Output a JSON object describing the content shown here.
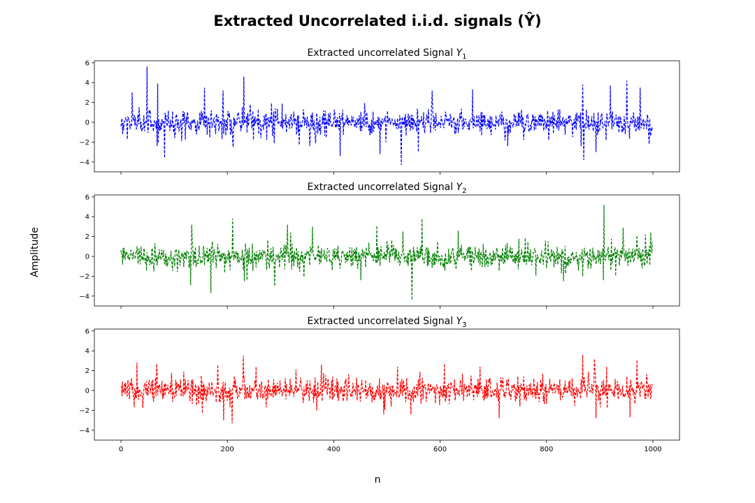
{
  "figure": {
    "suptitle": "Extracted Uncorrelated i.i.d. signals (Ŷ)",
    "xlabel": "n",
    "ylabel": "Amplitude"
  },
  "chart_data": [
    {
      "type": "line",
      "title": "Extracted uncorrelated Signal Y",
      "title_subscript": "1",
      "color": "#0000ff",
      "line_style": "dashed",
      "xlim": [
        -50,
        1050
      ],
      "ylim": [
        -5,
        6.2
      ],
      "xticks": [
        0,
        200,
        400,
        600,
        800,
        1000
      ],
      "yticks": [
        -4,
        -2,
        0,
        2,
        4,
        6
      ],
      "n_points": 1000,
      "peaks": [
        [
          21,
          3.0
        ],
        [
          49,
          5.6
        ],
        [
          69,
          3.9
        ],
        [
          82,
          -3.6
        ],
        [
          157,
          3.5
        ],
        [
          192,
          3.2
        ],
        [
          211,
          -2.5
        ],
        [
          231,
          4.6
        ],
        [
          412,
          2.9
        ],
        [
          412,
          -3.4
        ],
        [
          487,
          -3.2
        ],
        [
          527,
          -4.3
        ],
        [
          559,
          -3.0
        ],
        [
          585,
          3.2
        ],
        [
          661,
          3.3
        ],
        [
          804,
          -1.8
        ],
        [
          868,
          3.8
        ],
        [
          870,
          -3.8
        ],
        [
          893,
          -3.0
        ],
        [
          920,
          3.7
        ],
        [
          951,
          4.2
        ],
        [
          976,
          3.5
        ],
        [
          993,
          -2.2
        ]
      ]
    },
    {
      "type": "line",
      "title": "Extracted uncorrelated Signal Y",
      "title_subscript": "2",
      "color": "#008000",
      "line_style": "dashed",
      "xlim": [
        -50,
        1050
      ],
      "ylim": [
        -5,
        6.2
      ],
      "xticks": [
        0,
        200,
        400,
        600,
        800,
        1000
      ],
      "yticks": [
        -4,
        -2,
        0,
        2,
        4,
        6
      ],
      "n_points": 1000,
      "peaks": [
        [
          131,
          -2.9
        ],
        [
          133,
          3.2
        ],
        [
          169,
          -3.7
        ],
        [
          210,
          3.8
        ],
        [
          232,
          -2.5
        ],
        [
          289,
          -3.0
        ],
        [
          313,
          3.2
        ],
        [
          360,
          3.0
        ],
        [
          481,
          3.1
        ],
        [
          530,
          2.5
        ],
        [
          547,
          -4.4
        ],
        [
          566,
          3.8
        ],
        [
          634,
          2.6
        ],
        [
          832,
          -2.5
        ],
        [
          908,
          5.2
        ],
        [
          944,
          2.9
        ],
        [
          986,
          2.2
        ]
      ]
    },
    {
      "type": "line",
      "title": "Extracted uncorrelated Signal Y",
      "title_subscript": "3",
      "color": "#ff0000",
      "line_style": "dashed",
      "xlim": [
        -50,
        1050
      ],
      "ylim": [
        -5,
        6.2
      ],
      "xticks": [
        0,
        200,
        400,
        600,
        800,
        1000
      ],
      "yticks": [
        -4,
        -2,
        0,
        2,
        4,
        6
      ],
      "n_points": 1000,
      "peaks": [
        [
          30,
          2.8
        ],
        [
          67,
          2.7
        ],
        [
          153,
          -2.3
        ],
        [
          182,
          2.6
        ],
        [
          193,
          -3.0
        ],
        [
          209,
          -3.3
        ],
        [
          230,
          3.5
        ],
        [
          377,
          2.6
        ],
        [
          545,
          -2.4
        ],
        [
          608,
          2.7
        ],
        [
          711,
          -2.8
        ],
        [
          868,
          3.6
        ],
        [
          890,
          3.2
        ],
        [
          893,
          -2.8
        ],
        [
          957,
          -2.7
        ],
        [
          970,
          3.1
        ]
      ]
    }
  ]
}
